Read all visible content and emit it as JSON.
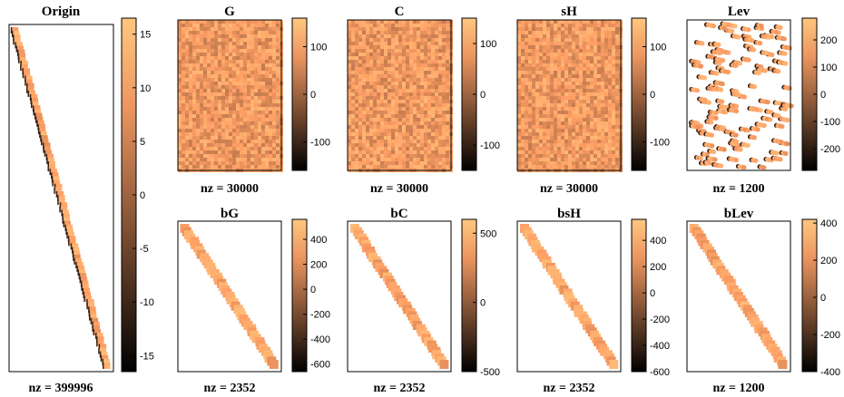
{
  "panels": [
    {
      "id": "origin",
      "title": "Origin",
      "nz": "nz = 399996",
      "pattern": "band",
      "cbar_ticks": [
        "15",
        "10",
        "5",
        "0",
        "-5",
        "-10",
        "-15"
      ],
      "cbar_values": [
        15,
        10,
        5,
        0,
        -5,
        -10,
        -15
      ],
      "cbar_range": [
        -16.5,
        16.5
      ]
    },
    {
      "id": "G",
      "title": "G",
      "nz": "nz = 30000",
      "pattern": "dense",
      "cbar_ticks": [
        "100",
        "0",
        "-100"
      ],
      "cbar_values": [
        100,
        0,
        -100
      ],
      "cbar_range": [
        -160,
        160
      ]
    },
    {
      "id": "C",
      "title": "C",
      "nz": "nz = 30000",
      "pattern": "dense",
      "cbar_ticks": [
        "100",
        "0",
        "-100"
      ],
      "cbar_values": [
        100,
        0,
        -100
      ],
      "cbar_range": [
        -150,
        150
      ]
    },
    {
      "id": "sH",
      "title": "sH",
      "nz": "nz = 30000",
      "pattern": "dense",
      "cbar_ticks": [
        "100",
        "0",
        "-100"
      ],
      "cbar_values": [
        100,
        0,
        -100
      ],
      "cbar_range": [
        -160,
        160
      ]
    },
    {
      "id": "Lev",
      "title": "Lev",
      "nz": "nz = 1200",
      "pattern": "scatter",
      "cbar_ticks": [
        "200",
        "100",
        "0",
        "-100",
        "-200"
      ],
      "cbar_values": [
        200,
        100,
        0,
        -100,
        -200
      ],
      "cbar_range": [
        -280,
        280
      ]
    },
    {
      "id": "bG",
      "title": "bG",
      "nz": "nz = 2352",
      "pattern": "band",
      "cbar_ticks": [
        "400",
        "200",
        "0",
        "-200",
        "-400",
        "-600"
      ],
      "cbar_values": [
        400,
        200,
        0,
        -200,
        -400,
        -600
      ],
      "cbar_range": [
        -660,
        560
      ]
    },
    {
      "id": "bC",
      "title": "bC",
      "nz": "nz = 2352",
      "pattern": "band",
      "cbar_ticks": [
        "500",
        "0",
        "-500"
      ],
      "cbar_values": [
        500,
        0,
        -500
      ],
      "cbar_range": [
        -500,
        600
      ]
    },
    {
      "id": "bsH",
      "title": "bsH",
      "nz": "nz = 2352",
      "pattern": "band",
      "cbar_ticks": [
        "400",
        "200",
        "0",
        "-200",
        "-400",
        "-600"
      ],
      "cbar_values": [
        400,
        200,
        0,
        -200,
        -400,
        -600
      ],
      "cbar_range": [
        -600,
        560
      ]
    },
    {
      "id": "bLev",
      "title": "bLev",
      "nz": "nz = 1200",
      "pattern": "band",
      "cbar_ticks": [
        "400",
        "200",
        "0",
        "-200",
        "-400"
      ],
      "cbar_values": [
        400,
        200,
        0,
        -200,
        -400
      ],
      "cbar_range": [
        -400,
        420
      ]
    }
  ]
}
